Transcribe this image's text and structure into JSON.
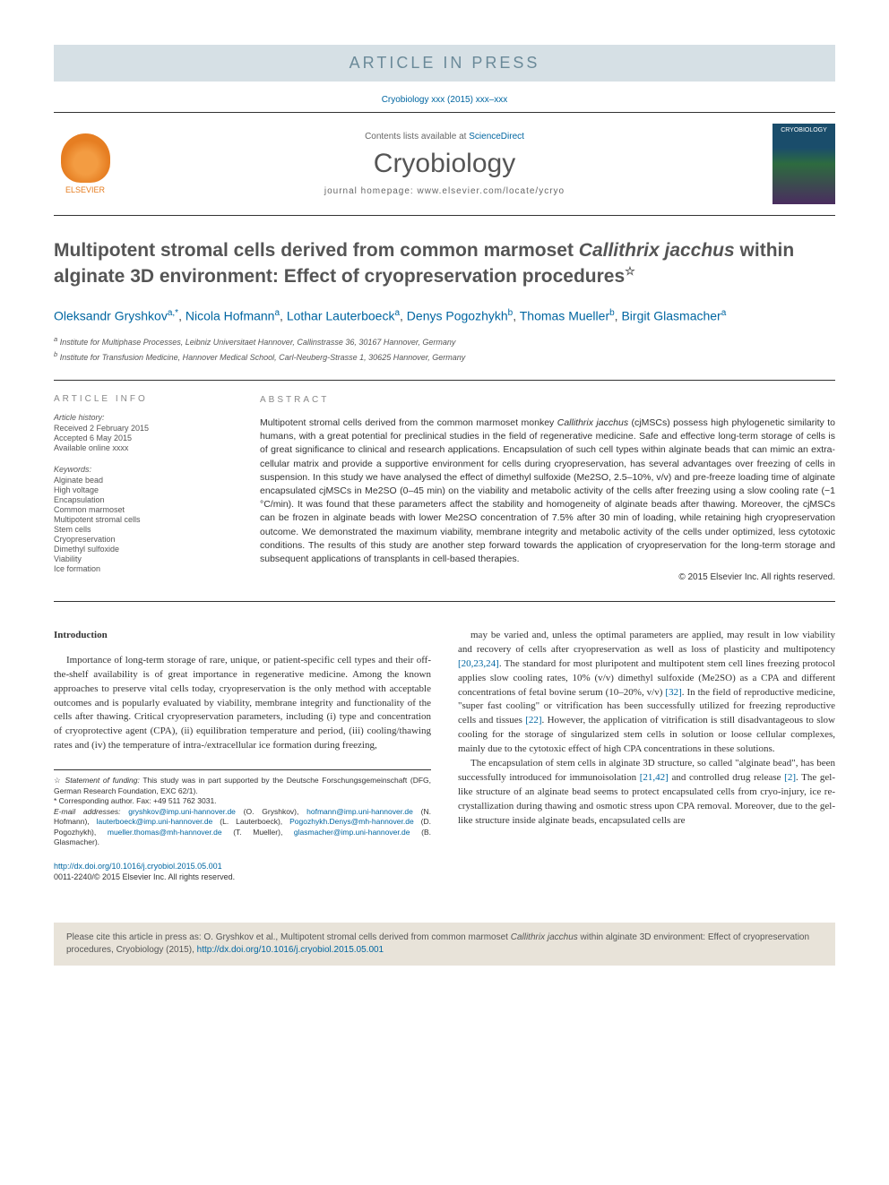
{
  "banner": "ARTICLE IN PRESS",
  "citeLine": "Cryobiology xxx (2015) xxx–xxx",
  "publisher": "ELSEVIER",
  "contentsPrefix": "Contents lists available at ",
  "contentsLink": "ScienceDirect",
  "journalName": "Cryobiology",
  "homepagePrefix": "journal homepage: ",
  "homepageUrl": "www.elsevier.com/locate/ycryo",
  "title": {
    "pre": "Multipotent stromal cells derived from common marmoset ",
    "italic": "Callithrix jacchus",
    "post": " within alginate 3D environment: Effect of cryopreservation procedures"
  },
  "authors": [
    {
      "name": "Oleksandr Gryshkov",
      "aff": "a,",
      "corr": "*"
    },
    {
      "name": "Nicola Hofmann",
      "aff": "a"
    },
    {
      "name": "Lothar Lauterboeck",
      "aff": "a"
    },
    {
      "name": "Denys Pogozhykh",
      "aff": "b"
    },
    {
      "name": "Thomas Mueller",
      "aff": "b"
    },
    {
      "name": "Birgit Glasmacher",
      "aff": "a"
    }
  ],
  "affiliations": [
    {
      "label": "a",
      "text": "Institute for Multiphase Processes, Leibniz Universitaet Hannover, Callinstrasse 36, 30167 Hannover, Germany"
    },
    {
      "label": "b",
      "text": "Institute for Transfusion Medicine, Hannover Medical School, Carl-Neuberg-Strasse 1, 30625 Hannover, Germany"
    }
  ],
  "infoHeading": "ARTICLE INFO",
  "abstractHeading": "ABSTRACT",
  "history": {
    "label": "Article history:",
    "received": "Received 2 February 2015",
    "accepted": "Accepted 6 May 2015",
    "online": "Available online xxxx"
  },
  "keywordsLabel": "Keywords:",
  "keywords": [
    "Alginate bead",
    "High voltage",
    "Encapsulation",
    "Common marmoset",
    "Multipotent stromal cells",
    "Stem cells",
    "Cryopreservation",
    "Dimethyl sulfoxide",
    "Viability",
    "Ice formation"
  ],
  "abstract": {
    "p1a": "Multipotent stromal cells derived from the common marmoset monkey ",
    "p1i": "Callithrix jacchus",
    "p1b": " (cjMSCs) possess high phylogenetic similarity to humans, with a great potential for preclinical studies in the field of regenerative medicine. Safe and effective long-term storage of cells is of great significance to clinical and research applications. Encapsulation of such cell types within alginate beads that can mimic an extra-cellular matrix and provide a supportive environment for cells during cryopreservation, has several advantages over freezing of cells in suspension. In this study we have analysed the effect of dimethyl sulfoxide (Me2SO, 2.5–10%, v/v) and pre-freeze loading time of alginate encapsulated cjMSCs in Me2SO (0–45 min) on the viability and metabolic activity of the cells after freezing using a slow cooling rate (−1 °C/min). It was found that these parameters affect the stability and homogeneity of alginate beads after thawing. Moreover, the cjMSCs can be frozen in alginate beads with lower Me2SO concentration of 7.5% after 30 min of loading, while retaining high cryopreservation outcome. We demonstrated the maximum viability, membrane integrity and metabolic activity of the cells under optimized, less cytotoxic conditions. The results of this study are another step forward towards the application of cryopreservation for the long-term storage and subsequent applications of transplants in cell-based therapies."
  },
  "copyright": "© 2015 Elsevier Inc. All rights reserved.",
  "introHeading": "Introduction",
  "col1": {
    "p1": "Importance of long-term storage of rare, unique, or patient-specific cell types and their off-the-shelf availability is of great importance in regenerative medicine. Among the known approaches to preserve vital cells today, cryopreservation is the only method with acceptable outcomes and is popularly evaluated by viability, membrane integrity and functionality of the cells after thawing. Critical cryopreservation parameters, including (i) type and concentration of cryoprotective agent (CPA), (ii) equilibration temperature and period, (iii) cooling/thawing rates and (iv) the temperature of intra-/extracellular ice formation during freezing,"
  },
  "col2": {
    "p1a": "may be varied and, unless the optimal parameters are applied, may result in low viability and recovery of cells after cryopreservation as well as loss of plasticity and multipotency ",
    "p1r1": "[20,23,24]",
    "p1b": ". The standard for most pluripotent and multipotent stem cell lines freezing protocol applies slow cooling rates, 10% (v/v) dimethyl sulfoxide (Me2SO) as a CPA and different concentrations of fetal bovine serum (10–20%, v/v) ",
    "p1r2": "[32]",
    "p1c": ". In the field of reproductive medicine, \"super fast cooling\" or vitrification has been successfully utilized for freezing reproductive cells and tissues ",
    "p1r3": "[22]",
    "p1d": ". However, the application of vitrification is still disadvantageous to slow cooling for the storage of singularized stem cells in solution or loose cellular complexes, mainly due to the cytotoxic effect of high CPA concentrations in these solutions.",
    "p2a": "The encapsulation of stem cells in alginate 3D structure, so called \"alginate bead\", has been successfully introduced for immunoisolation ",
    "p2r1": "[21,42]",
    "p2b": " and controlled drug release ",
    "p2r2": "[2]",
    "p2c": ". The gel-like structure of an alginate bead seems to protect encapsulated cells from cryo-injury, ice re-crystallization during thawing and osmotic stress upon CPA removal. Moreover, due to the gel-like structure inside alginate beads, encapsulated cells are"
  },
  "footnotes": {
    "funding": {
      "star": "☆ ",
      "label": "Statement of funding:",
      "text": " This study was in part supported by the Deutsche Forschungsgemeinschaft (DFG, German Research Foundation, EXC 62/1)."
    },
    "corrLabel": "* Corresponding author. Fax: +49 511 762 3031.",
    "emailLabel": "E-mail addresses: ",
    "emails": [
      {
        "addr": "gryshkov@imp.uni-hannover.de",
        "who": " (O. Gryshkov), "
      },
      {
        "addr": "hofmann@imp.uni-hannover.de",
        "who": " (N. Hofmann), "
      },
      {
        "addr": "lauterboeck@imp.uni-hannover.de",
        "who": " (L. Lauterboeck), "
      },
      {
        "addr": "Pogozhykh.Denys@mh-hannover.de",
        "who": " (D. Pogozhykh), "
      },
      {
        "addr": "mueller.thomas@mh-hannover.de",
        "who": " (T. Mueller), "
      },
      {
        "addr": "glasmacher@imp.uni-hannover.de",
        "who": " (B. Glasmacher)."
      }
    ]
  },
  "doi": {
    "url": "http://dx.doi.org/10.1016/j.cryobiol.2015.05.001",
    "issn": "0011-2240/© 2015 Elsevier Inc. All rights reserved."
  },
  "citeBox": {
    "pre": "Please cite this article in press as: O. Gryshkov et al., Multipotent stromal cells derived from common marmoset ",
    "italic": "Callithrix jacchus",
    "post": " within alginate 3D environment: Effect of cryopreservation procedures, Cryobiology (2015), ",
    "link": "http://dx.doi.org/10.1016/j.cryobiol.2015.05.001"
  }
}
